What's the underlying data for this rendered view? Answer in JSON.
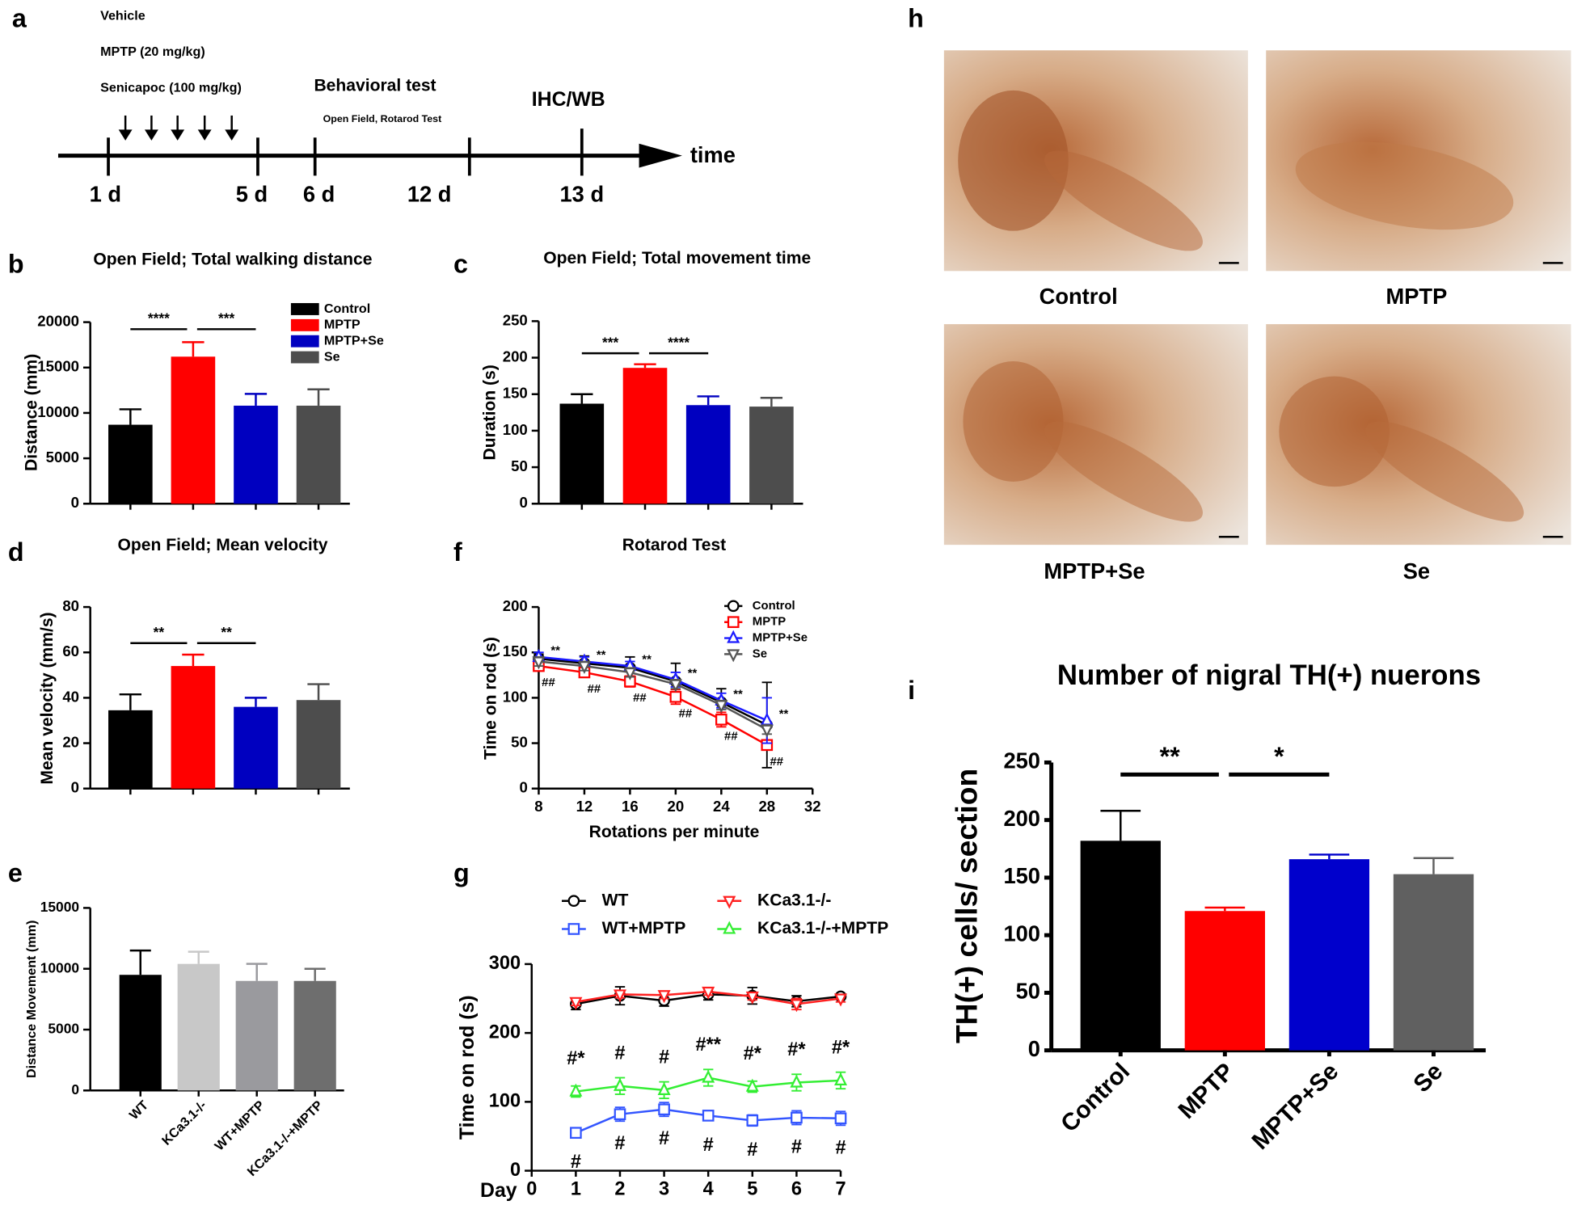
{
  "timeline": {
    "panel": "a",
    "treatments": [
      "Vehicle",
      "MPTP (20 mg/kg)",
      "Senicapoc (100 mg/kg)"
    ],
    "events": [
      {
        "label": "Behavioral test",
        "sublabel": "Open Field, Rotarod Test"
      },
      {
        "label": "IHC/WB"
      }
    ],
    "days": [
      "1 d",
      "5 d",
      "6 d",
      "12 d",
      "13 d"
    ],
    "axis_label": "time"
  },
  "micrographs": {
    "panel": "h",
    "labels": [
      "Control",
      "MPTP",
      "MPTP+Se",
      "Se"
    ]
  },
  "chart_data": [
    {
      "type": "bar",
      "panel": "b",
      "title": "Open Field; Total walking distance",
      "y_label": "Distance  (mm)",
      "categories": [
        "Control",
        "MPTP",
        "MPTP+Se",
        "Se"
      ],
      "legend": true,
      "colors": [
        "#000000",
        "#ff0000",
        "#0000c0",
        "#4d4d4d"
      ],
      "values": [
        8700,
        16200,
        10800,
        10800
      ],
      "errors": [
        1700,
        1600,
        1300,
        1800
      ],
      "ylim": [
        0,
        20000
      ],
      "yticks": [
        0,
        5000,
        10000,
        15000,
        20000
      ],
      "significance": [
        {
          "between": [
            0,
            1
          ],
          "label": "****"
        },
        {
          "between": [
            1,
            2
          ],
          "label": "***"
        }
      ]
    },
    {
      "type": "bar",
      "panel": "c",
      "title": "Open Field; Total movement time",
      "y_label": "Duration (s)",
      "colors": [
        "#000000",
        "#ff0000",
        "#0000c0",
        "#4d4d4d"
      ],
      "values": [
        137,
        186,
        135,
        133
      ],
      "errors": [
        13,
        5,
        12,
        12
      ],
      "ylim": [
        0,
        250
      ],
      "yticks": [
        0,
        50,
        100,
        150,
        200,
        250
      ],
      "significance": [
        {
          "between": [
            0,
            1
          ],
          "label": "***"
        },
        {
          "between": [
            1,
            2
          ],
          "label": "****"
        }
      ]
    },
    {
      "type": "bar",
      "panel": "d",
      "title": "Open Field; Mean velocity",
      "y_label": "Mean velocity (mm/s)",
      "colors": [
        "#000000",
        "#ff0000",
        "#0000c0",
        "#4d4d4d"
      ],
      "values": [
        34.5,
        54,
        36,
        39
      ],
      "errors": [
        7,
        5,
        4,
        7
      ],
      "ylim": [
        0,
        80
      ],
      "yticks": [
        0,
        20,
        40,
        60,
        80
      ],
      "significance": [
        {
          "between": [
            0,
            1
          ],
          "label": "**"
        },
        {
          "between": [
            1,
            2
          ],
          "label": "**"
        }
      ]
    },
    {
      "type": "bar",
      "panel": "e",
      "y_label": "Distance Movement (mm)",
      "categories": [
        "WT",
        "KCa3.1-/-",
        "WT+MPTP",
        "KCa3.1-/-+MPTP"
      ],
      "legend": false,
      "colors": [
        "#000000",
        "#c8c8c8",
        "#9a9a9e",
        "#6e6e6e"
      ],
      "values": [
        9500,
        10400,
        9000,
        9000
      ],
      "errors": [
        2000,
        1000,
        1400,
        1000
      ],
      "ylim": [
        0,
        15000
      ],
      "yticks": [
        0,
        5000,
        10000,
        15000
      ]
    },
    {
      "type": "line",
      "panel": "f",
      "title": "Rotarod Test",
      "x_label": "Rotations per minute",
      "y_label": "Time on rod (s)",
      "x": [
        8,
        12,
        16,
        20,
        24,
        28
      ],
      "xlim": [
        8,
        32
      ],
      "xticks": [
        8,
        12,
        16,
        20,
        24,
        28,
        32
      ],
      "ylim": [
        0,
        200
      ],
      "yticks": [
        0,
        50,
        100,
        150,
        200
      ],
      "series": [
        {
          "name": "Control",
          "color": "#000000",
          "marker": "circle",
          "values": [
            143,
            138,
            133,
            118,
            95,
            70
          ],
          "errors": [
            5,
            8,
            12,
            20,
            15,
            47
          ]
        },
        {
          "name": "MPTP",
          "color": "#ff0000",
          "marker": "square",
          "values": [
            135,
            128,
            118,
            101,
            76,
            48
          ],
          "errors": [
            5,
            5,
            6,
            8,
            8,
            5
          ],
          "point_labels": [
            "##",
            "##",
            "##",
            "##",
            "##",
            "##"
          ],
          "point_label_color": "#ff0000"
        },
        {
          "name": "MPTP+Se",
          "color": "#1a1aff",
          "marker": "triangle-up",
          "values": [
            145,
            140,
            135,
            120,
            97,
            75
          ],
          "errors": [
            5,
            5,
            5,
            8,
            8,
            25
          ],
          "point_labels": [
            "**",
            "**",
            "**",
            "**",
            "**",
            "**"
          ],
          "point_label_color": "#1a1aff"
        },
        {
          "name": "Se",
          "color": "#555555",
          "marker": "triangle-down",
          "values": [
            140,
            135,
            128,
            115,
            92,
            65
          ],
          "errors": [
            5,
            5,
            5,
            5,
            5,
            5
          ]
        }
      ]
    },
    {
      "type": "line",
      "panel": "g",
      "x_label": "Day",
      "y_label": "Time on rod (s)",
      "x": [
        1,
        2,
        3,
        4,
        5,
        6,
        7
      ],
      "xlim": [
        0,
        7
      ],
      "xticks": [
        0,
        1,
        2,
        3,
        4,
        5,
        6,
        7
      ],
      "ylim": [
        0,
        300
      ],
      "yticks": [
        0,
        100,
        200,
        300
      ],
      "series": [
        {
          "name": "WT",
          "color": "#000000",
          "marker": "circle",
          "values": [
            242,
            254,
            247,
            256,
            254,
            246,
            253
          ],
          "errors": [
            8,
            13,
            8,
            8,
            12,
            8,
            3
          ]
        },
        {
          "name": "WT+MPTP",
          "color": "#3355ff",
          "marker": "square",
          "values": [
            55,
            82,
            89,
            80,
            73,
            77,
            76
          ],
          "errors": [
            3,
            10,
            10,
            7,
            8,
            10,
            10
          ],
          "point_labels": [
            "#",
            "#",
            "#",
            "#",
            "#",
            "#",
            "#"
          ],
          "point_label_color": "#000000"
        },
        {
          "name": "KCa3.1-/-",
          "color": "#ff2020",
          "marker": "triangle-down",
          "values": [
            245,
            256,
            255,
            260,
            253,
            242,
            250
          ],
          "errors": [
            5,
            5,
            5,
            5,
            5,
            8,
            5
          ]
        },
        {
          "name": "KCa3.1-/-+MPTP",
          "color": "#33ee33",
          "marker": "triangle-up",
          "values": [
            115,
            123,
            117,
            135,
            122,
            128,
            131
          ],
          "errors": [
            8,
            12,
            12,
            12,
            8,
            12,
            12
          ],
          "point_labels": [
            "#*",
            "#",
            "#",
            "#**",
            "#*",
            "#*",
            "#*"
          ],
          "point_label_color": "#000000"
        }
      ]
    },
    {
      "type": "bar",
      "panel": "i",
      "title": "Number of nigral TH(+) nuerons",
      "y_label": "TH(+) cells/ section",
      "categories": [
        "Control",
        "MPTP",
        "MPTP+Se",
        "Se"
      ],
      "legend": false,
      "colors": [
        "#000000",
        "#ff0000",
        "#0000cc",
        "#606060"
      ],
      "values": [
        182,
        121,
        166,
        153
      ],
      "errors": [
        26,
        3,
        4,
        14
      ],
      "ylim": [
        0,
        250
      ],
      "yticks": [
        0,
        50,
        100,
        150,
        200,
        250
      ],
      "significance": [
        {
          "between": [
            0,
            1
          ],
          "label": "**"
        },
        {
          "between": [
            1,
            2
          ],
          "label": "*"
        }
      ]
    }
  ]
}
